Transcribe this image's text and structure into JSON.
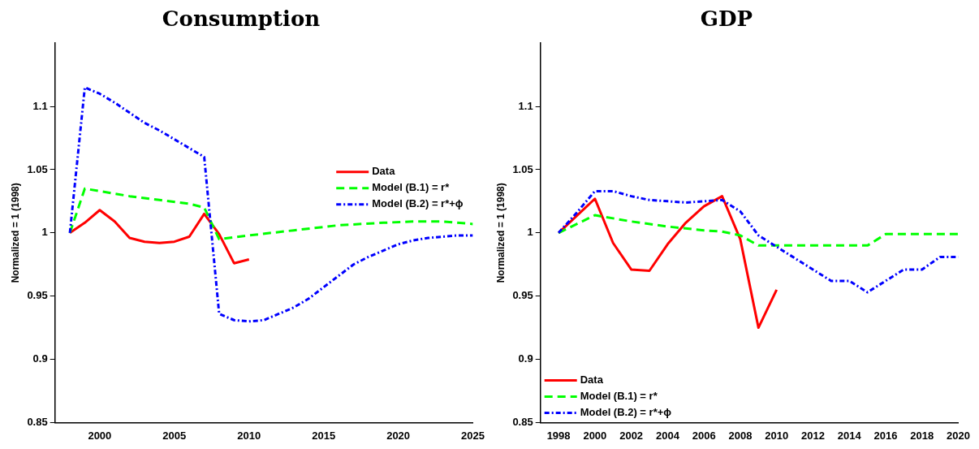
{
  "chart_data": [
    {
      "type": "line",
      "title": "Consumption",
      "ylabel": "Normalized = 1 (1998)",
      "xlim": [
        1997,
        2025
      ],
      "xticks": [
        2000,
        2005,
        2010,
        2015,
        2020,
        2025
      ],
      "ylim": [
        0.85,
        1.15
      ],
      "yticks": [
        0.85,
        0.9,
        0.95,
        1,
        1.05,
        1.1
      ],
      "grid": false,
      "legend": "right",
      "marker": "none",
      "series": [
        {
          "name": "Data",
          "color": "#ff0000",
          "line_style": "solid",
          "x": [
            1998,
            1999,
            2000,
            2001,
            2002,
            2003,
            2004,
            2005,
            2006,
            2007,
            2008,
            2009,
            2010
          ],
          "values": [
            1.0,
            1.008,
            1.018,
            1.009,
            0.996,
            0.993,
            0.992,
            0.993,
            0.997,
            1.015,
            0.999,
            0.976,
            0.979
          ]
        },
        {
          "name": "Model (B.1) = r*",
          "color": "#00ff00",
          "line_style": "dashed",
          "x": [
            1998,
            1999,
            2000,
            2002,
            2004,
            2006,
            2007,
            2008,
            2010,
            2013,
            2016,
            2019,
            2021,
            2023,
            2025
          ],
          "values": [
            1.0,
            1.035,
            1.033,
            1.029,
            1.026,
            1.023,
            1.02,
            0.995,
            0.998,
            1.002,
            1.006,
            1.008,
            1.009,
            1.009,
            1.007
          ]
        },
        {
          "name": "Model (B.2) = r*+ϕ",
          "color": "#0000ff",
          "line_style": "dashdot",
          "x": [
            1998,
            1999,
            2000,
            2001,
            2002,
            2003,
            2004,
            2005,
            2006,
            2007,
            2008,
            2009,
            2010,
            2011,
            2012,
            2013,
            2014,
            2015,
            2016,
            2017,
            2018,
            2019,
            2020,
            2021,
            2022,
            2023,
            2024,
            2025
          ],
          "values": [
            1.0,
            1.115,
            1.11,
            1.103,
            1.095,
            1.087,
            1.081,
            1.074,
            1.067,
            1.06,
            0.936,
            0.931,
            0.93,
            0.931,
            0.936,
            0.941,
            0.948,
            0.957,
            0.966,
            0.975,
            0.981,
            0.986,
            0.991,
            0.994,
            0.996,
            0.997,
            0.998,
            0.998
          ]
        }
      ]
    },
    {
      "type": "line",
      "title": "GDP",
      "ylabel": "Normalized = 1 (1998)",
      "xlim": [
        1997,
        2020
      ],
      "xticks": [
        1998,
        2000,
        2002,
        2004,
        2006,
        2008,
        2010,
        2012,
        2014,
        2016,
        2018,
        2020
      ],
      "ylim": [
        0.85,
        1.15
      ],
      "yticks": [
        0.85,
        0.9,
        0.95,
        1,
        1.05,
        1.1
      ],
      "grid": false,
      "legend": "bottom left",
      "marker": "none",
      "series": [
        {
          "name": "Data",
          "color": "#ff0000",
          "line_style": "solid",
          "x": [
            1998,
            2000,
            2001,
            2002,
            2003,
            2004,
            2005,
            2006,
            2007,
            2008,
            2009,
            2010
          ],
          "values": [
            1.0,
            1.027,
            0.992,
            0.971,
            0.97,
            0.991,
            1.008,
            1.021,
            1.029,
            0.995,
            0.925,
            0.955
          ]
        },
        {
          "name": "Model (B.1) = r*",
          "color": "#00ff00",
          "line_style": "dashed",
          "x": [
            1998,
            1999,
            2000,
            2002,
            2004,
            2006,
            2007,
            2008,
            2009,
            2015,
            2016,
            2020
          ],
          "values": [
            1.0,
            1.007,
            1.014,
            1.009,
            1.005,
            1.002,
            1.001,
            0.998,
            0.99,
            0.99,
            0.999,
            0.999
          ]
        },
        {
          "name": "Model (B.2) = r*+ϕ",
          "color": "#0000ff",
          "line_style": "dashdot",
          "x": [
            1998,
            1999,
            2000,
            2001,
            2002,
            2003,
            2004,
            2005,
            2006,
            2007,
            2008,
            2009,
            2010,
            2011,
            2012,
            2013,
            2014,
            2015,
            2016,
            2017,
            2018,
            2019,
            2020
          ],
          "values": [
            1.0,
            1.016,
            1.033,
            1.033,
            1.029,
            1.026,
            1.025,
            1.024,
            1.025,
            1.026,
            1.017,
            0.998,
            0.989,
            0.98,
            0.971,
            0.962,
            0.962,
            0.953,
            0.962,
            0.971,
            0.971,
            0.981,
            0.981
          ]
        }
      ]
    }
  ]
}
